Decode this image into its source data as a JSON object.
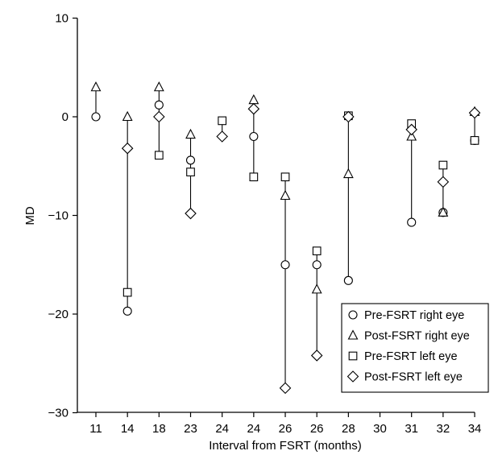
{
  "chart_data": {
    "type": "scatter",
    "title": "",
    "xlabel": "Interval from FSRT (months)",
    "ylabel": "MD",
    "ylim": [
      -30,
      10
    ],
    "yticks": [
      10,
      0,
      -10,
      -20,
      -30
    ],
    "categories": [
      "11",
      "14",
      "18",
      "23",
      "24",
      "24",
      "26",
      "26",
      "28",
      "30",
      "31",
      "32",
      "34"
    ],
    "grid": false,
    "legend_position": "bottom-right",
    "connectors": "vertical line per category spanning all markers",
    "series": [
      {
        "name": "Pre-FSRT right eye",
        "marker": "circle",
        "values": [
          0,
          -19.7,
          1.2,
          -4.4,
          null,
          -2.0,
          -15.0,
          -15.0,
          -16.6,
          null,
          -10.7,
          -9.7,
          -2.4
        ]
      },
      {
        "name": "Post-FSRT right eye",
        "marker": "triangle",
        "values": [
          3.0,
          0.0,
          3.0,
          -1.8,
          null,
          1.7,
          -8.0,
          -17.5,
          -5.8,
          null,
          -2.0,
          -9.7,
          0.5
        ]
      },
      {
        "name": "Pre-FSRT left eye",
        "marker": "square",
        "values": [
          null,
          -17.8,
          -3.9,
          -5.6,
          -0.4,
          -6.1,
          -6.1,
          -13.6,
          0.1,
          null,
          -0.7,
          -4.9,
          -2.4
        ]
      },
      {
        "name": "Post-FSRT left eye",
        "marker": "diamond",
        "values": [
          null,
          -3.2,
          0.0,
          -9.8,
          -2.0,
          0.8,
          -27.5,
          -24.2,
          0.0,
          null,
          -1.3,
          -6.6,
          0.4
        ]
      }
    ]
  }
}
